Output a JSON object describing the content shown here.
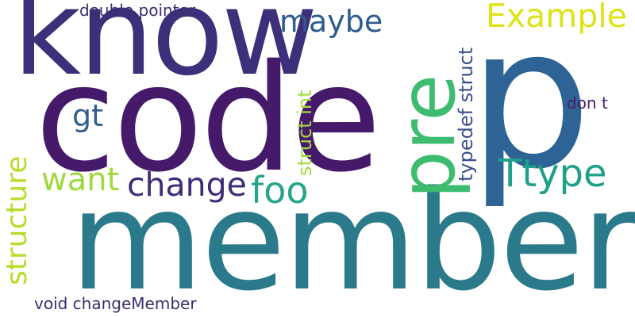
{
  "words": {
    "code": "code",
    "member": "member",
    "know": "know",
    "p": "p",
    "pre": "pre",
    "ttype": "Ttype",
    "example": "Example",
    "foo": "foo",
    "change": "change",
    "want": "want",
    "maybe": "maybe",
    "gt": "gt",
    "structure": "structure",
    "struct_int": "struct int",
    "typedef_struct": "typedef struct",
    "double_pointer": "double pointer",
    "void_change_member": "void changeMember",
    "dont": "don t"
  },
  "colors": {
    "background": "#ffffff",
    "code": "#461a6b",
    "member": "#2b7a8b",
    "know": "#3e2f7a",
    "p": "#2e6495",
    "pre": "#3dbb6f",
    "ttype": "#1fa088",
    "example": "#dde318",
    "foo": "#25a589",
    "change": "#3f2c79",
    "want": "#a0d93b",
    "maybe": "#2e5c8e",
    "gt": "#365e8d",
    "structure": "#b5dd2b",
    "struct_int": "#a6d93b",
    "typedef_struct": "#3b4d8a",
    "double_pointer": "#3b2f70",
    "void_change_member": "#3b2f70",
    "dont": "#4a1d6b"
  }
}
